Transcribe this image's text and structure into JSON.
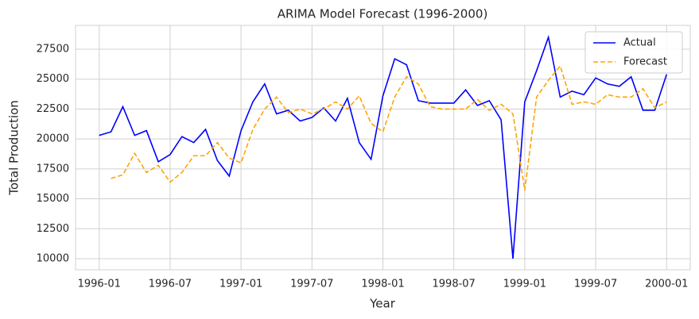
{
  "chart_data": {
    "type": "line",
    "title": "ARIMA Model Forecast (1996-2000)",
    "xlabel": "Year",
    "ylabel": "Total Production",
    "x": [
      "1996-01",
      "1996-02",
      "1996-03",
      "1996-04",
      "1996-05",
      "1996-06",
      "1996-07",
      "1996-08",
      "1996-09",
      "1996-10",
      "1996-11",
      "1996-12",
      "1997-01",
      "1997-02",
      "1997-03",
      "1997-04",
      "1997-05",
      "1997-06",
      "1997-07",
      "1997-08",
      "1997-09",
      "1997-10",
      "1997-11",
      "1997-12",
      "1998-01",
      "1998-02",
      "1998-03",
      "1998-04",
      "1998-05",
      "1998-06",
      "1998-07",
      "1998-08",
      "1998-09",
      "1998-10",
      "1998-11",
      "1998-12",
      "1999-01",
      "1999-02",
      "1999-03",
      "1999-04",
      "1999-05",
      "1999-06",
      "1999-07",
      "1999-08",
      "1999-09",
      "1999-10",
      "1999-11",
      "1999-12",
      "2000-01"
    ],
    "series": [
      {
        "name": "Actual",
        "color": "#0000ff",
        "dash": false,
        "values": [
          20300,
          20600,
          22700,
          20300,
          20700,
          18100,
          18700,
          20200,
          19700,
          20800,
          18200,
          16900,
          20700,
          23100,
          24600,
          22100,
          22400,
          21500,
          21800,
          22600,
          21500,
          23400,
          19700,
          18300,
          23600,
          26700,
          26200,
          23200,
          23000,
          23000,
          23000,
          24100,
          22800,
          23200,
          21600,
          10000,
          23100,
          25700,
          28500,
          23500,
          24000,
          23700,
          25100,
          24600,
          24400,
          25200,
          22400,
          22400,
          25400
        ]
      },
      {
        "name": "Forecast",
        "color": "#ffa500",
        "dash": true,
        "values": [
          null,
          16700,
          17000,
          18800,
          17200,
          17800,
          16400,
          17200,
          18600,
          18600,
          19700,
          18400,
          18000,
          20800,
          22500,
          23500,
          22200,
          22500,
          22100,
          22500,
          23100,
          22500,
          23600,
          21300,
          20600,
          23500,
          25200,
          24600,
          22700,
          22500,
          22500,
          22500,
          23300,
          22400,
          22900,
          22100,
          15700,
          23500,
          24900,
          26100,
          22900,
          23100,
          22900,
          23700,
          23500,
          23500,
          24200,
          22600,
          23100
        ]
      }
    ],
    "xlim": [
      "1995-11",
      "2000-03"
    ],
    "xticks": [
      "1996-01",
      "1996-07",
      "1997-01",
      "1997-07",
      "1998-01",
      "1998-07",
      "1999-01",
      "1999-07",
      "2000-01"
    ],
    "ylim": [
      9070,
      29490
    ],
    "yticks": [
      {
        "value": 10000,
        "label": "10000"
      },
      {
        "value": 12500,
        "label": "12500"
      },
      {
        "value": 15000,
        "label": "15000"
      },
      {
        "value": 17500,
        "label": "17500"
      },
      {
        "value": 20000,
        "label": "20000"
      },
      {
        "value": 22500,
        "label": "22500"
      },
      {
        "value": 25000,
        "label": "25000"
      },
      {
        "value": 27500,
        "label": "27500"
      }
    ],
    "grid": true,
    "legend": "upper right"
  }
}
